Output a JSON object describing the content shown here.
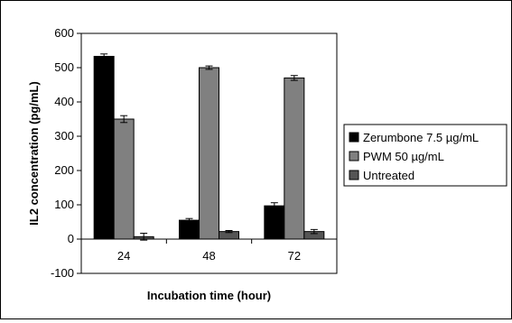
{
  "chart_data": {
    "type": "bar",
    "title": "",
    "xlabel": "Incubation time (hour)",
    "ylabel": "IL2 concentration (pg/mL)",
    "categories": [
      "24",
      "48",
      "72"
    ],
    "ylim": [
      -100,
      600
    ],
    "yticks": [
      -100,
      0,
      100,
      200,
      300,
      400,
      500,
      600
    ],
    "grid": false,
    "legend_position": "right",
    "series": [
      {
        "name": "Zerumbone 7.5 µg/mL",
        "color": "#000000",
        "values": [
          533,
          55,
          97
        ],
        "errors": [
          7,
          5,
          9
        ]
      },
      {
        "name": "PWM 50 µg/mL",
        "color": "#808080",
        "values": [
          350,
          500,
          470
        ],
        "errors": [
          10,
          5,
          7
        ]
      },
      {
        "name": "Untreated",
        "color": "#555555",
        "values": [
          7,
          22,
          22
        ],
        "errors": [
          10,
          3,
          6
        ]
      }
    ]
  }
}
